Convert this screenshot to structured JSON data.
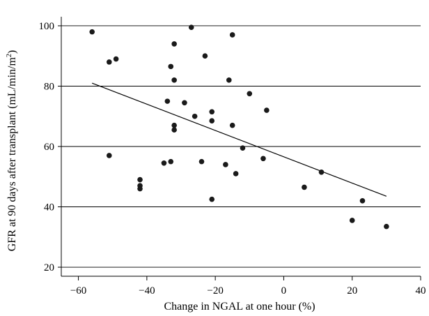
{
  "chart_data": {
    "type": "scatter",
    "title": "",
    "xlabel": "Change in NGAL at one hour (%)",
    "ylabel": "GFR at 90 days after transplant (mL/min/m",
    "ylabel_sup": "2",
    "ylabel_suffix": ")",
    "xlim": [
      -65,
      40
    ],
    "ylim": [
      17,
      103
    ],
    "xticks": [
      -60,
      -40,
      -20,
      0,
      20,
      40
    ],
    "yticks": [
      20,
      40,
      60,
      80,
      100
    ],
    "xtick_labels": [
      "−60",
      "−40",
      "−20",
      "0",
      "20",
      "40"
    ],
    "ytick_labels": [
      "20",
      "40",
      "60",
      "80",
      "100"
    ],
    "grid": "horizontal",
    "points": [
      {
        "x": -56,
        "y": 98
      },
      {
        "x": -51,
        "y": 88
      },
      {
        "x": -49,
        "y": 89
      },
      {
        "x": -51,
        "y": 57
      },
      {
        "x": -42,
        "y": 49
      },
      {
        "x": -42,
        "y": 47
      },
      {
        "x": -42,
        "y": 46
      },
      {
        "x": -35,
        "y": 54.5
      },
      {
        "x": -34,
        "y": 75
      },
      {
        "x": -33,
        "y": 86.5
      },
      {
        "x": -33,
        "y": 55
      },
      {
        "x": -32,
        "y": 94
      },
      {
        "x": -32,
        "y": 82
      },
      {
        "x": -32,
        "y": 67
      },
      {
        "x": -32,
        "y": 65.5
      },
      {
        "x": -29,
        "y": 74.5
      },
      {
        "x": -27,
        "y": 99.5
      },
      {
        "x": -26,
        "y": 70
      },
      {
        "x": -24,
        "y": 55
      },
      {
        "x": -23,
        "y": 90
      },
      {
        "x": -21,
        "y": 71.5
      },
      {
        "x": -21,
        "y": 68.5
      },
      {
        "x": -21,
        "y": 42.5
      },
      {
        "x": -17,
        "y": 54
      },
      {
        "x": -16,
        "y": 82
      },
      {
        "x": -15,
        "y": 97
      },
      {
        "x": -15,
        "y": 67
      },
      {
        "x": -14,
        "y": 51
      },
      {
        "x": -12,
        "y": 59.5
      },
      {
        "x": -10,
        "y": 77.5
      },
      {
        "x": -6,
        "y": 56
      },
      {
        "x": -5,
        "y": 72
      },
      {
        "x": 6,
        "y": 46.5
      },
      {
        "x": 11,
        "y": 51.5
      },
      {
        "x": 20,
        "y": 35.5
      },
      {
        "x": 23,
        "y": 42
      },
      {
        "x": 30,
        "y": 33.5
      }
    ],
    "trendline": {
      "x": [
        -56,
        30
      ],
      "y": [
        81,
        43.5
      ]
    },
    "colors": {
      "marker": "#1a1a1a",
      "line": "#000000",
      "grid": "#000000"
    }
  }
}
